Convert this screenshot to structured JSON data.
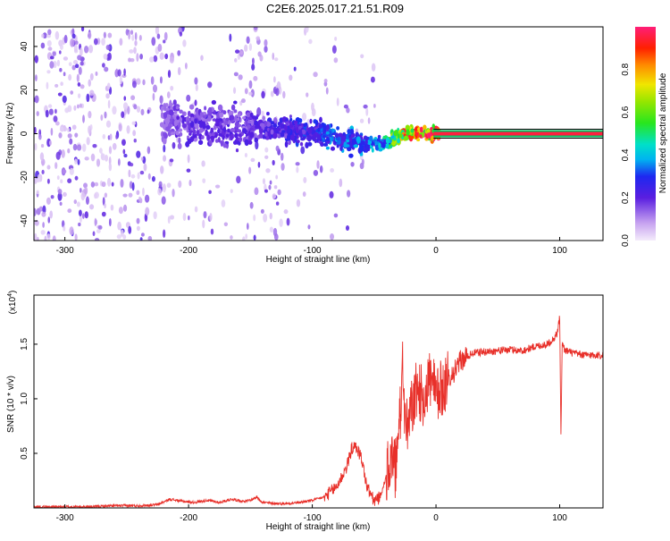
{
  "title": "C2E6.2025.017.21.51.R09",
  "colors": {
    "signal": "#e8302a",
    "frame": "#000000",
    "background": "#ffffff"
  },
  "chart_data": [
    {
      "type": "heatmap",
      "xlabel": "Height of straight line (km)",
      "ylabel": "Frequency (Hz)",
      "xlim": [
        -325,
        135
      ],
      "ylim": [
        -49,
        49
      ],
      "x_ticks": [
        -300,
        -200,
        -100,
        0,
        100
      ],
      "x_tick_labels": [
        "-300",
        "-200",
        "-100",
        "0",
        "100"
      ],
      "y_ticks": [
        -40,
        -20,
        0,
        20,
        40
      ],
      "y_tick_labels": [
        "-40",
        "-20",
        "0",
        "20",
        "40"
      ],
      "grid": false,
      "colorbar": {
        "label": "Normalized spectral amplitude",
        "range": [
          0,
          1
        ],
        "ticks": [
          0.0,
          0.2,
          0.4,
          0.6,
          0.8
        ],
        "tick_labels": [
          "0.0",
          "0.2",
          "0.4",
          "0.6",
          "0.8"
        ],
        "placement": "right"
      },
      "ridge": {
        "x": [
          -220,
          -200,
          -150,
          -100,
          -80,
          -60,
          -40,
          -25,
          0,
          135
        ],
        "frequency": [
          6,
          5,
          3,
          1,
          -1,
          -5,
          -4,
          0,
          0,
          0
        ],
        "note_amplitude_low_to_high": [
          0.15,
          0.2,
          0.2,
          0.3,
          0.35,
          0.35,
          0.45,
          0.85,
          0.95,
          0.95
        ]
      }
    },
    {
      "type": "line",
      "xlabel": "Height of straight line (km)",
      "ylabel": "SNR (10 * v/v)",
      "y_multiplier_label": "(x10",
      "y_multiplier_exp": "4",
      "xlim": [
        -325,
        135
      ],
      "ylim": [
        0,
        1.95
      ],
      "x_ticks": [
        -300,
        -200,
        -100,
        0,
        100
      ],
      "x_tick_labels": [
        "-300",
        "-200",
        "-100",
        "0",
        "100"
      ],
      "y_ticks": [
        0.5,
        1.0,
        1.5
      ],
      "y_tick_labels": [
        "0.5",
        "1.0",
        "1.5"
      ],
      "grid": false,
      "series": [
        {
          "x": [
            -325,
            -300,
            -280,
            -260,
            -240,
            -225,
            -215,
            -205,
            -195,
            -185,
            -175,
            -165,
            -155,
            -150,
            -145,
            -140,
            -130,
            -120,
            -110,
            -100,
            -90,
            -80,
            -72,
            -68,
            -64,
            -60,
            -56,
            -50,
            -45,
            -40,
            -36,
            -33,
            -30,
            -27,
            -25,
            -23,
            -20,
            -15,
            -10,
            -5,
            0,
            5,
            10,
            15,
            20,
            30,
            40,
            50,
            60,
            70,
            80,
            90,
            95,
            98,
            100,
            101,
            102,
            104,
            110,
            120,
            135
          ],
          "values": [
            0.01,
            0.01,
            0.01,
            0.02,
            0.02,
            0.03,
            0.08,
            0.06,
            0.05,
            0.07,
            0.05,
            0.08,
            0.06,
            0.07,
            0.1,
            0.05,
            0.04,
            0.04,
            0.05,
            0.07,
            0.1,
            0.2,
            0.38,
            0.55,
            0.55,
            0.45,
            0.2,
            0.06,
            0.1,
            0.3,
            0.45,
            0.35,
            0.6,
            1.3,
            0.8,
            0.7,
            0.9,
            1.1,
            1.0,
            1.2,
            1.0,
            1.1,
            1.2,
            1.25,
            1.35,
            1.42,
            1.43,
            1.44,
            1.45,
            1.44,
            1.48,
            1.5,
            1.55,
            1.6,
            1.75,
            0.65,
            1.5,
            1.45,
            1.42,
            1.4,
            1.4
          ]
        }
      ]
    }
  ]
}
